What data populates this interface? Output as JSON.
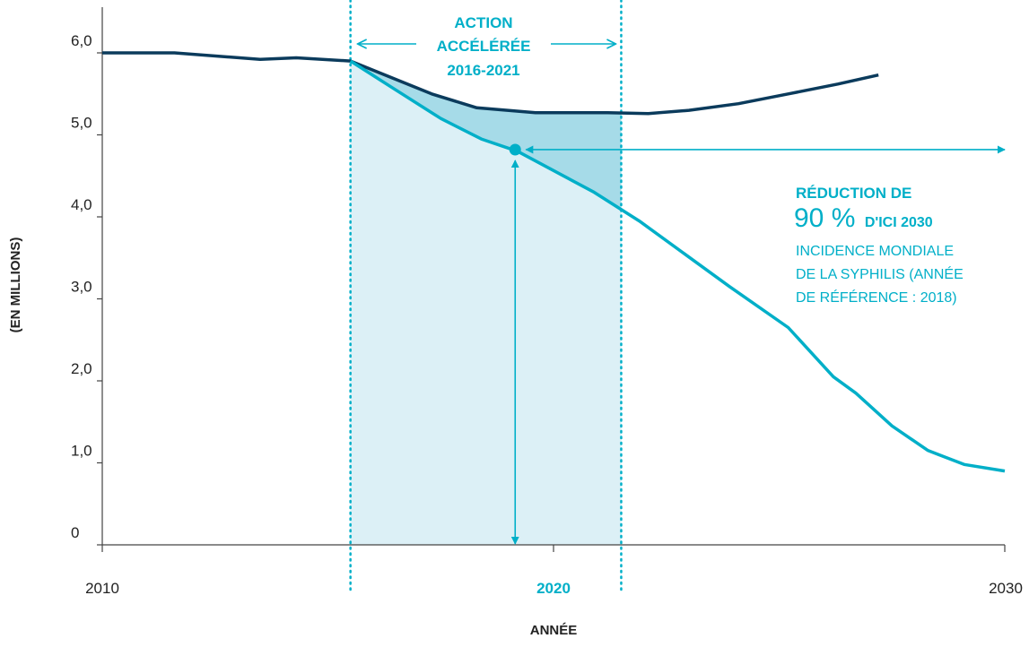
{
  "colors": {
    "dark_line": "#0b3b5c",
    "cyan": "#00afc8",
    "band_fill": "#dcf0f6",
    "gap_fill": "#a6dbe8",
    "axis": "#444444",
    "text": "#222222"
  },
  "chart_data": {
    "type": "line",
    "title": "",
    "xlabel": "ANNÉE",
    "ylabel": "(EN MILLIONS)",
    "xlim": [
      2010,
      2030
    ],
    "ylim": [
      0,
      6.5
    ],
    "y_ticks": [
      0,
      1,
      2,
      3,
      4,
      5,
      6
    ],
    "y_tick_labels": [
      "0",
      "1,0",
      "2,0",
      "3,0",
      "4,0",
      "5,0",
      "6,0"
    ],
    "x_ticks": [
      2010,
      2020,
      2030
    ],
    "x_tick_labels": [
      "2010",
      "2020",
      "2030"
    ],
    "highlighted_x_tick": "2020",
    "grid": false,
    "series": [
      {
        "color": "#0b3b5c",
        "x": [
          2010,
          2011.6,
          2013.5,
          2014.3,
          2015.5,
          2017.3,
          2018.3,
          2019.6,
          2021.2,
          2022.1,
          2023.0,
          2024.1,
          2025.2,
          2026.3,
          2027.2
        ],
        "y": [
          6.0,
          6.0,
          5.92,
          5.94,
          5.9,
          5.5,
          5.33,
          5.27,
          5.27,
          5.26,
          5.3,
          5.38,
          5.5,
          5.62,
          5.73
        ]
      },
      {
        "color": "#00afc8",
        "x": [
          2015.5,
          2016.5,
          2017.5,
          2018.4,
          2019.2,
          2020.9,
          2021.9,
          2022.9,
          2023.9,
          2025.2,
          2026.2,
          2026.7,
          2027.5,
          2028.3,
          2029.1,
          2030.0
        ],
        "y": [
          5.9,
          5.55,
          5.2,
          4.95,
          4.8,
          4.3,
          3.95,
          3.55,
          3.15,
          2.65,
          2.05,
          1.85,
          1.45,
          1.15,
          0.98,
          0.9
        ]
      }
    ],
    "shaded_band": {
      "x_start": 2015.5,
      "x_end": 2021.5,
      "label_lines": [
        "ACTION",
        "ACCÉLÉRÉE",
        "2016-2021"
      ]
    },
    "marker": {
      "x": 2019.15,
      "y": 4.82
    },
    "annotation": {
      "line1": "RÉDUCTION DE",
      "big": "90 %",
      "big_suffix": "D'ICI 2030",
      "lines": [
        "INCIDENCE MONDIALE",
        "DE LA SYPHILIS (ANNÉE",
        "DE RÉFÉRENCE : 2018)"
      ]
    }
  }
}
